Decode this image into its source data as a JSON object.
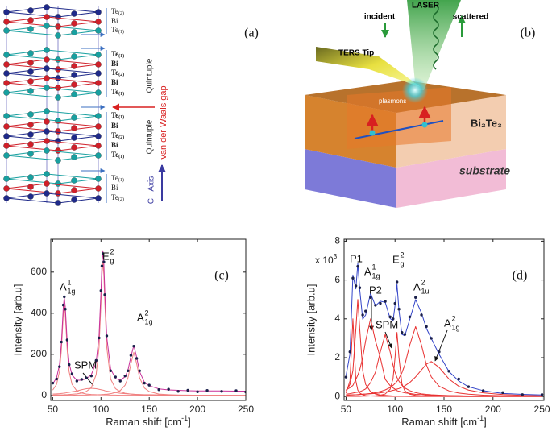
{
  "panel_a": {
    "label": "(a)",
    "layers": [
      {
        "el": "Te",
        "sub": "(2)"
      },
      {
        "el": "Bi"
      },
      {
        "el": "Te",
        "sub": "(1)"
      },
      {
        "el": "Te",
        "sub": "(1)"
      },
      {
        "el": "Bi"
      },
      {
        "el": "Te",
        "sub": "(2)"
      },
      {
        "el": "Bi"
      },
      {
        "el": "Te",
        "sub": "(1)"
      },
      {
        "el": "Te",
        "sub": "(1)"
      },
      {
        "el": "Bi"
      },
      {
        "el": "Te",
        "sub": "(2)"
      },
      {
        "el": "Bi"
      },
      {
        "el": "Te",
        "sub": "(1)"
      },
      {
        "el": "Te",
        "sub": "(1)"
      },
      {
        "el": "Bi"
      },
      {
        "el": "Te",
        "sub": "(2)"
      }
    ],
    "quintuple": [
      "Quintuple",
      "Quintuple"
    ],
    "gap": "van der Waals gap",
    "c_axis": "C - Axis"
  },
  "panel_b": {
    "label": "(b)",
    "laser": "LASER",
    "incident": "incident",
    "scattered": "scattered",
    "tip": "TERS Tip",
    "plasmons": "plasmons",
    "film": "Bi₂Te₃",
    "substrate": "substrate"
  },
  "chart_data": [
    {
      "type": "line",
      "label": "(c)",
      "x_label": {
        "text": "Raman shift [cm",
        "sup": "-1",
        "tail": "]"
      },
      "y_label": "Intensity [arb.u]",
      "x": [
        50,
        54,
        57,
        59,
        61,
        62,
        63,
        65,
        67,
        70,
        75,
        80,
        85,
        90,
        95,
        98,
        100,
        101,
        102,
        103,
        104,
        106,
        110,
        115,
        120,
        125,
        128,
        131,
        134,
        137,
        140,
        145,
        150,
        160,
        170,
        180,
        190,
        200,
        210,
        225,
        240,
        250
      ],
      "series": [
        {
          "style": "line",
          "color": "#f08080",
          "values": [
            26,
            54,
            116,
            220,
            396,
            440,
            396,
            220,
            116,
            54,
            22,
            12,
            7,
            5,
            4,
            3,
            3,
            3,
            3,
            3,
            3,
            3,
            2,
            2,
            1,
            1,
            1,
            1,
            1,
            1,
            1,
            1,
            1,
            0,
            0,
            0,
            0,
            0,
            0,
            0,
            0,
            0
          ]
        },
        {
          "style": "line",
          "color": "#f08080",
          "values": [
            2,
            3,
            3,
            3,
            3,
            4,
            4,
            4,
            5,
            6,
            8,
            12,
            20,
            38,
            101,
            234,
            450,
            585,
            650,
            585,
            450,
            234,
            80,
            33,
            18,
            11,
            9,
            7,
            6,
            5,
            4,
            3,
            3,
            2,
            1,
            1,
            0,
            0,
            0,
            0,
            0,
            0
          ]
        },
        {
          "style": "line",
          "color": "#f08080",
          "values": [
            1,
            1,
            1,
            1,
            1,
            1,
            1,
            1,
            1,
            1,
            2,
            2,
            2,
            3,
            3,
            4,
            4,
            5,
            5,
            5,
            6,
            6,
            9,
            14,
            24,
            50,
            86,
            154,
            210,
            154,
            86,
            36,
            19,
            7,
            4,
            2,
            2,
            1,
            1,
            1,
            0,
            0
          ]
        },
        {
          "style": "line",
          "color": "#f08080",
          "values": [
            7,
            8,
            9,
            10,
            11,
            12,
            12,
            14,
            15,
            18,
            22,
            28,
            33,
            35,
            33,
            30,
            28,
            27,
            26,
            25,
            23,
            21,
            18,
            14,
            11,
            9,
            8,
            7,
            6,
            5,
            5,
            4,
            4,
            3,
            2,
            2,
            1,
            1,
            1,
            1,
            1,
            1
          ]
        },
        {
          "style": "line",
          "color": "#c8309a",
          "values": [
            56,
            86,
            149,
            254,
            431,
            477,
            433,
            259,
            157,
            99,
            74,
            74,
            82,
            101,
            161,
            291,
            505,
            640,
            704,
            638,
            502,
            284,
            129,
            83,
            74,
            91,
            124,
            189,
            243,
            185,
            116,
            64,
            47,
            32,
            27,
            25,
            23,
            22,
            22,
            22,
            21,
            21
          ]
        },
        {
          "style": "markers",
          "color": "#1a1f4a",
          "values": [
            60,
            80,
            140,
            260,
            440,
            480,
            420,
            270,
            150,
            105,
            70,
            78,
            85,
            95,
            170,
            280,
            510,
            630,
            690,
            650,
            490,
            290,
            120,
            90,
            70,
            95,
            120,
            195,
            240,
            180,
            120,
            60,
            50,
            28,
            30,
            20,
            25,
            18,
            24,
            20,
            23,
            17
          ]
        }
      ],
      "xlim": [
        48,
        250
      ],
      "ylim": [
        -24,
        760
      ],
      "xticks": [
        50,
        100,
        150,
        200,
        250
      ],
      "yticks": [
        0,
        200,
        400,
        600
      ],
      "annotations": [
        {
          "base": "A",
          "sup": "1",
          "sub": "1g"
        },
        {
          "base": "E",
          "sup": "2",
          "sub": "g"
        },
        {
          "base": "A",
          "sup": "2",
          "sub": "1g"
        },
        {
          "base": "SPM"
        }
      ]
    },
    {
      "type": "line",
      "label": "(d)",
      "x_label": {
        "text": "Raman shift [cm",
        "sup": "-1",
        "tail": "]"
      },
      "y_label": "Intensity [arb.u]",
      "multiplier": {
        "text": "x 10",
        "sup": "3"
      },
      "x": [
        50,
        54,
        57,
        60,
        62,
        64,
        67,
        70,
        75,
        80,
        85,
        90,
        95,
        98,
        100,
        102,
        104,
        107,
        110,
        115,
        121,
        127,
        132,
        137,
        145,
        155,
        165,
        175,
        190,
        210,
        230,
        250
      ],
      "series": [
        {
          "style": "line",
          "color": "#e83030",
          "values": [
            0.18,
            0.8,
            4.0,
            0.8,
            0.33,
            0.18,
            0.09,
            0.05,
            0.03,
            0.02,
            0.01,
            0.01,
            0.01,
            0.01,
            0.01,
            0.01,
            0.01,
            0.01,
            0.01,
            0,
            0,
            0,
            0,
            0,
            0,
            0,
            0,
            0,
            0,
            0,
            0,
            0
          ]
        },
        {
          "style": "line",
          "color": "#e83030",
          "values": [
            0.29,
            0.62,
            1.33,
            3.46,
            5.0,
            3.46,
            1.33,
            0.62,
            0.25,
            0.13,
            0.08,
            0.06,
            0.04,
            0.03,
            0.03,
            0.03,
            0.02,
            0.02,
            0.02,
            0.02,
            0.01,
            0.01,
            0.01,
            0.01,
            0.01,
            0,
            0,
            0,
            0,
            0,
            0,
            0
          ]
        },
        {
          "style": "line",
          "color": "#e83030",
          "values": [
            0.34,
            0.45,
            0.57,
            0.88,
            1.1,
            1.38,
            2.0,
            2.87,
            4.0,
            2.87,
            2.0,
            0.88,
            0.56,
            0.44,
            0.38,
            0.3,
            0.27,
            0.23,
            0.19,
            0.16,
            0.11,
            0.1,
            0.07,
            0.06,
            0.05,
            0.04,
            0.04,
            0.02,
            0.02,
            0.01,
            0.01,
            0.01
          ]
        },
        {
          "style": "line",
          "color": "#e83030",
          "values": [
            0.12,
            0.15,
            0.18,
            0.21,
            0.22,
            0.25,
            0.31,
            0.39,
            0.71,
            1.25,
            2.3,
            3.2,
            2.3,
            1.6,
            1.25,
            0.98,
            0.79,
            0.58,
            0.44,
            0.3,
            0.2,
            0.14,
            0.11,
            0.09,
            0.07,
            0.05,
            0.04,
            0.03,
            0.02,
            0.01,
            0.01,
            0.01
          ]
        },
        {
          "style": "line",
          "color": "#e83030",
          "values": [
            0.01,
            0.01,
            0.01,
            0.01,
            0.01,
            0.01,
            0.02,
            0.02,
            0.03,
            0.04,
            0.07,
            0.13,
            0.37,
            0.93,
            2.01,
            3.3,
            2.01,
            0.66,
            0.29,
            0.12,
            0.06,
            0.03,
            0.02,
            0.02,
            0.01,
            0.01,
            0.01,
            0,
            0,
            0,
            0,
            0
          ]
        },
        {
          "style": "line",
          "color": "#e83030",
          "values": [
            0.07,
            0.08,
            0.09,
            0.09,
            0.1,
            0.11,
            0.12,
            0.13,
            0.16,
            0.2,
            0.26,
            0.34,
            0.46,
            0.57,
            0.67,
            0.78,
            0.93,
            1.22,
            1.63,
            2.65,
            3.6,
            2.65,
            1.63,
            1.01,
            0.53,
            0.29,
            0.18,
            0.12,
            0.07,
            0.04,
            0.03,
            0.02
          ]
        },
        {
          "style": "line",
          "color": "#e83030",
          "values": [
            0.07,
            0.08,
            0.08,
            0.09,
            0.09,
            0.1,
            0.11,
            0.12,
            0.14,
            0.16,
            0.19,
            0.23,
            0.28,
            0.32,
            0.34,
            0.38,
            0.41,
            0.48,
            0.55,
            0.72,
            1.01,
            1.37,
            1.67,
            1.8,
            1.5,
            0.9,
            0.53,
            0.33,
            0.19,
            0.1,
            0.06,
            0.04
          ]
        },
        {
          "style": "line",
          "color": "#3344c8",
          "values": [
            1.08,
            2.19,
            6.26,
            5.54,
            6.85,
            5.49,
            3.98,
            4.2,
            5.32,
            4.67,
            4.91,
            4.85,
            4.02,
            3.9,
            4.69,
            5.78,
            4.44,
            3.2,
            3.13,
            3.97,
            4.99,
            4.3,
            3.51,
            2.99,
            2.17,
            1.29,
            0.8,
            0.5,
            0.3,
            0.16,
            0.11,
            0.08
          ]
        },
        {
          "style": "markers",
          "color": "#1a1f4a",
          "values": [
            1.0,
            2.3,
            6.1,
            5.7,
            6.7,
            5.6,
            4.2,
            4.4,
            5.1,
            4.7,
            4.8,
            4.9,
            4.1,
            4.0,
            4.8,
            5.9,
            4.5,
            3.3,
            3.2,
            4.1,
            5.1,
            4.2,
            3.6,
            3.0,
            2.3,
            1.3,
            0.9,
            0.5,
            0.3,
            0.2,
            0.1,
            0.1
          ]
        }
      ],
      "xlim": [
        48,
        252
      ],
      "ylim": [
        -0.2,
        8.1
      ],
      "xticks": [
        50,
        100,
        150,
        200,
        250
      ],
      "yticks": [
        0,
        2,
        4,
        6,
        8
      ],
      "annotations": [
        {
          "base": "P1"
        },
        {
          "base": "A",
          "sup": "1",
          "sub": "1g"
        },
        {
          "base": "P2"
        },
        {
          "base": "SPM"
        },
        {
          "base": "E",
          "sup": "2",
          "sub": "g"
        },
        {
          "base": "A",
          "sup": "2",
          "sub": "1u"
        },
        {
          "base": "A",
          "sup": "2",
          "sub": "1g"
        }
      ]
    }
  ]
}
